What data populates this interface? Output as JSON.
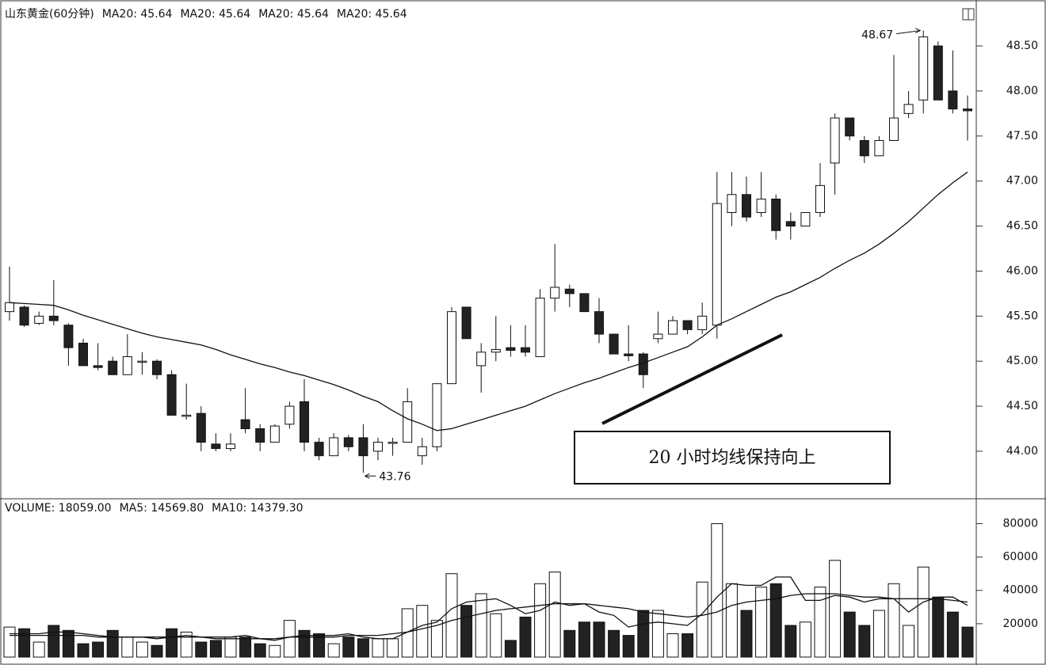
{
  "chart_data": [
    {
      "type": "candlestick",
      "title": "山东黄金(60分钟)",
      "header": [
        "MA20: 45.64",
        "MA20: 45.64",
        "MA20: 45.64",
        "MA20: 45.64"
      ],
      "open": [
        45.55,
        45.6,
        45.42,
        45.5,
        45.4,
        45.2,
        44.95,
        45.0,
        44.85,
        45.0,
        45.0,
        44.85,
        44.4,
        44.42,
        44.08,
        44.03,
        44.35,
        44.25,
        44.1,
        44.3,
        44.55,
        44.1,
        43.95,
        44.15,
        44.15,
        44.0,
        44.1,
        44.1,
        43.95,
        44.05,
        44.75,
        45.6,
        44.95,
        45.1,
        45.15,
        45.15,
        45.05,
        45.7,
        45.8,
        45.75,
        45.55,
        45.3,
        45.08,
        45.08,
        45.25,
        45.3,
        45.45,
        45.35,
        45.4,
        46.65,
        46.85,
        46.65,
        46.8,
        46.55,
        46.5,
        46.65,
        47.2,
        47.7,
        47.45,
        47.28,
        47.45,
        47.75,
        47.9,
        48.5,
        48.0,
        47.8
      ],
      "high": [
        46.05,
        45.62,
        45.55,
        45.9,
        45.42,
        45.25,
        45.2,
        45.05,
        45.3,
        45.1,
        45.02,
        44.9,
        44.75,
        44.5,
        44.2,
        44.2,
        44.7,
        44.3,
        44.3,
        44.55,
        44.8,
        44.15,
        44.2,
        44.18,
        44.3,
        44.15,
        44.15,
        44.7,
        44.15,
        44.75,
        45.6,
        45.6,
        45.2,
        45.5,
        45.4,
        45.4,
        45.8,
        46.3,
        45.85,
        45.75,
        45.7,
        45.3,
        45.4,
        45.1,
        45.55,
        45.5,
        45.45,
        45.65,
        47.1,
        47.1,
        47.05,
        47.1,
        46.85,
        46.65,
        46.65,
        47.2,
        47.75,
        47.7,
        47.5,
        47.5,
        48.4,
        48.0,
        48.67,
        48.55,
        48.45,
        47.95
      ],
      "low": [
        45.45,
        45.38,
        45.4,
        45.4,
        44.95,
        44.95,
        44.9,
        44.85,
        44.85,
        44.85,
        44.8,
        44.4,
        44.35,
        44.0,
        44.0,
        44.0,
        44.2,
        44.0,
        44.1,
        44.25,
        44.0,
        43.9,
        43.95,
        44.0,
        43.76,
        43.9,
        43.95,
        44.1,
        43.85,
        44.0,
        44.75,
        45.25,
        44.65,
        45.0,
        45.05,
        45.05,
        45.05,
        45.55,
        45.6,
        45.55,
        45.2,
        45.08,
        45.0,
        44.7,
        45.2,
        45.3,
        45.3,
        45.3,
        45.25,
        46.5,
        46.55,
        46.6,
        46.35,
        46.35,
        46.5,
        46.6,
        46.85,
        47.45,
        47.2,
        47.28,
        47.45,
        47.7,
        47.75,
        47.9,
        47.75,
        47.45
      ],
      "close": [
        45.65,
        45.4,
        45.5,
        45.45,
        45.15,
        44.95,
        44.93,
        44.85,
        45.05,
        45.0,
        44.85,
        44.4,
        44.4,
        44.1,
        44.03,
        44.08,
        44.25,
        44.1,
        44.28,
        44.5,
        44.1,
        43.95,
        44.15,
        44.05,
        43.95,
        44.1,
        44.1,
        44.55,
        44.05,
        44.75,
        45.55,
        45.25,
        45.1,
        45.13,
        45.12,
        45.1,
        45.7,
        45.82,
        45.75,
        45.55,
        45.3,
        45.08,
        45.06,
        44.85,
        45.3,
        45.45,
        45.35,
        45.5,
        46.75,
        46.85,
        46.6,
        46.8,
        46.45,
        46.5,
        46.65,
        46.95,
        47.7,
        47.5,
        47.28,
        47.45,
        47.7,
        47.85,
        48.6,
        47.9,
        47.8,
        47.78
      ],
      "lines": [
        {
          "values": [
            45.65,
            45.64,
            45.63,
            45.62,
            45.57,
            45.51,
            45.46,
            45.41,
            45.36,
            45.31,
            45.27,
            45.24,
            45.21,
            45.18,
            45.13,
            45.07,
            45.02,
            44.97,
            44.93,
            44.88,
            44.84,
            44.79,
            44.74,
            44.68,
            44.61,
            44.55,
            44.45,
            44.36,
            44.3,
            44.23,
            44.25,
            44.3,
            44.35,
            44.4,
            44.45,
            44.5,
            44.57,
            44.64,
            44.7,
            44.76,
            44.81,
            44.87,
            44.93,
            44.98,
            45.04,
            45.1,
            45.16,
            45.27,
            45.4,
            45.47,
            45.55,
            45.63,
            45.71,
            45.77,
            45.85,
            45.93,
            46.03,
            46.12,
            46.2,
            46.3,
            46.42,
            46.55,
            46.7,
            46.85,
            46.98,
            47.1
          ]
        }
      ],
      "ylim": [
        43.49,
        49.01
      ],
      "yticks": [
        {
          "value": 44,
          "label": "44.00"
        },
        {
          "value": 44.5,
          "label": "44.50"
        },
        {
          "value": 45,
          "label": "45.00"
        },
        {
          "value": 45.5,
          "label": "45.50"
        },
        {
          "value": 46,
          "label": "46.00"
        },
        {
          "value": 46.5,
          "label": "46.50"
        },
        {
          "value": 47,
          "label": "47.00"
        },
        {
          "value": 47.5,
          "label": "47.50"
        },
        {
          "value": 48,
          "label": "48.00"
        },
        {
          "value": 48.5,
          "label": "48.50"
        }
      ],
      "annotations": [
        "48.67",
        "43.76",
        "20 小时均线保持向上"
      ]
    },
    {
      "type": "volume",
      "header": [
        "VOLUME: 18059.00",
        "MA5: 14569.80",
        "MA10: 14379.30"
      ],
      "values": [
        18000,
        17000,
        9000,
        19000,
        16000,
        8000,
        9000,
        16000,
        12000,
        9000,
        7000,
        17000,
        15000,
        9000,
        10000,
        12000,
        12000,
        8000,
        7000,
        22000,
        16000,
        14000,
        8000,
        12000,
        11000,
        11000,
        11000,
        29000,
        31000,
        22000,
        50000,
        31000,
        38000,
        26000,
        10000,
        24000,
        44000,
        51000,
        16000,
        21000,
        21000,
        16000,
        13000,
        28000,
        28000,
        14000,
        14000,
        45000,
        80000,
        44000,
        28000,
        42000,
        44000,
        19000,
        21000,
        42000,
        58000,
        27000,
        19000,
        28000,
        44000,
        19000,
        54000,
        36000,
        27000,
        18000
      ],
      "lines": [
        {
          "values": [
            14000,
            14000,
            14000,
            15000,
            15000,
            14000,
            13000,
            12000,
            12000,
            12000,
            11000,
            12000,
            13000,
            12000,
            12000,
            12000,
            13000,
            11000,
            10000,
            12000,
            13000,
            13000,
            13000,
            14000,
            12000,
            11000,
            11000,
            15000,
            19000,
            21000,
            29000,
            33000,
            34000,
            35000,
            31000,
            26000,
            28000,
            33000,
            31000,
            32000,
            27000,
            25000,
            18000,
            20000,
            21000,
            20000,
            19000,
            26000,
            36000,
            44000,
            43000,
            43000,
            48000,
            48000,
            34000,
            34000,
            37000,
            36000,
            33000,
            35000,
            35000,
            27000,
            33000,
            36000,
            36000,
            31000
          ]
        },
        {
          "values": [
            13000,
            13000,
            13000,
            13000,
            13000,
            13000,
            12000,
            12000,
            12000,
            12000,
            12000,
            12000,
            12000,
            12000,
            11000,
            11000,
            11000,
            11000,
            11000,
            12000,
            12000,
            12000,
            12000,
            13000,
            13000,
            13000,
            14000,
            15000,
            17000,
            19000,
            22000,
            24000,
            26000,
            28000,
            29000,
            30000,
            31000,
            32000,
            32000,
            32000,
            31000,
            30000,
            29000,
            27000,
            26000,
            25000,
            24000,
            25000,
            27000,
            31000,
            33000,
            34000,
            35000,
            37000,
            38000,
            38000,
            38000,
            37000,
            36000,
            36000,
            35000,
            35000,
            35000,
            35000,
            34000,
            33000
          ]
        }
      ],
      "ylim": [
        0,
        94000
      ],
      "yticks": [
        20000,
        40000,
        60000,
        80000
      ]
    }
  ]
}
